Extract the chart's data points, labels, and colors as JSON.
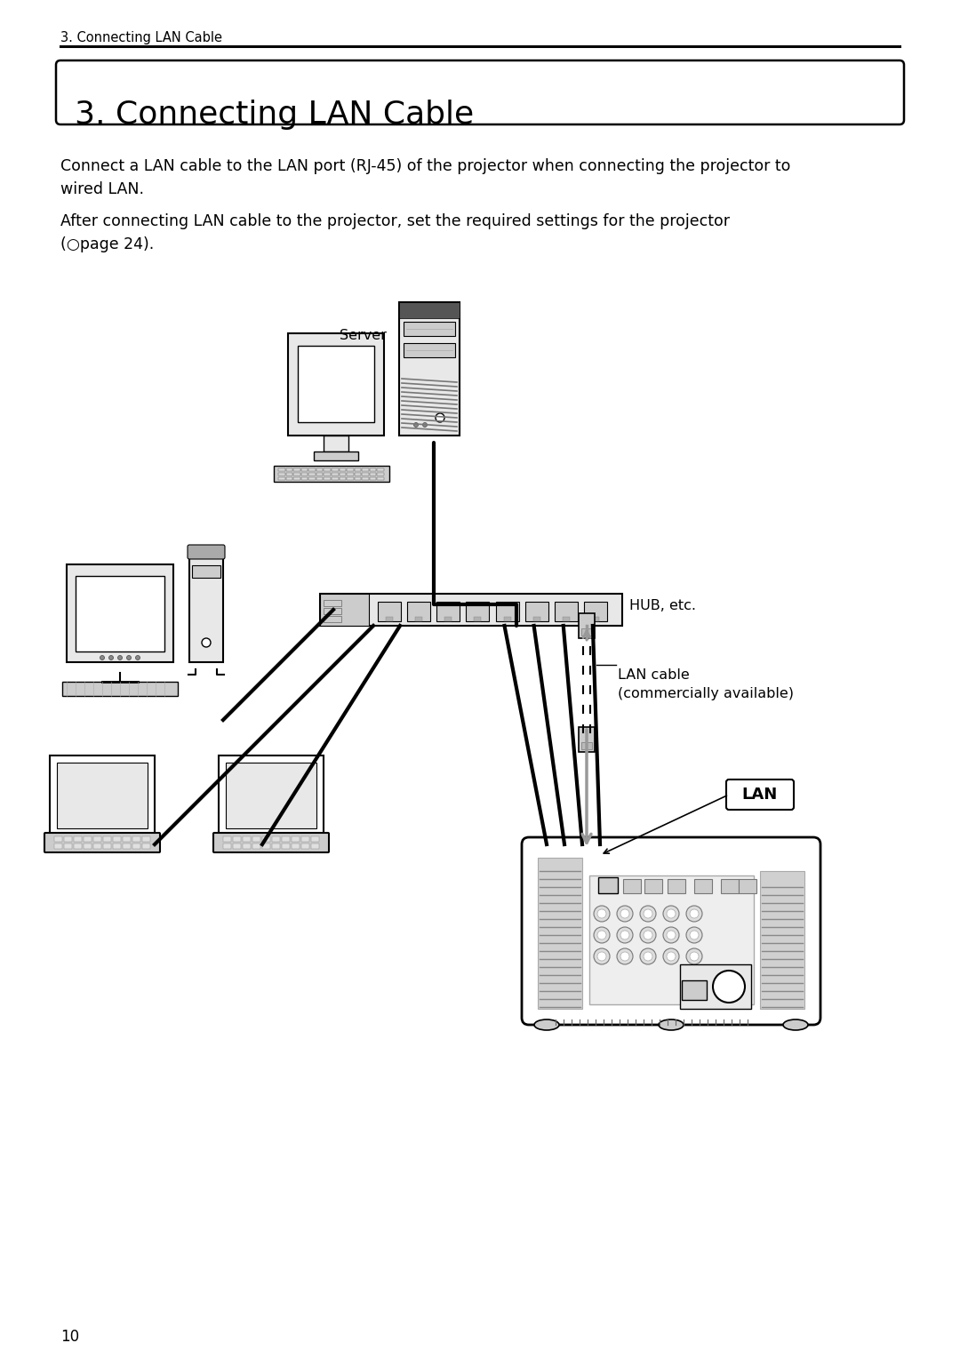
{
  "bg_color": "#ffffff",
  "text_color": "#000000",
  "page_number": "10",
  "header_text": "3. Connecting LAN Cable",
  "title_text": "3. Connecting LAN Cable",
  "body_text_1": "Connect a LAN cable to the LAN port (RJ-45) of the projector when connecting the projector to\nwired LAN.",
  "body_text_2": "After connecting LAN cable to the projector, set the required settings for the projector\n(○page 24).",
  "label_server": "Server",
  "label_hub": "HUB, etc.",
  "label_lan_cable": "LAN cable\n(commercially available)",
  "label_lan": "LAN"
}
